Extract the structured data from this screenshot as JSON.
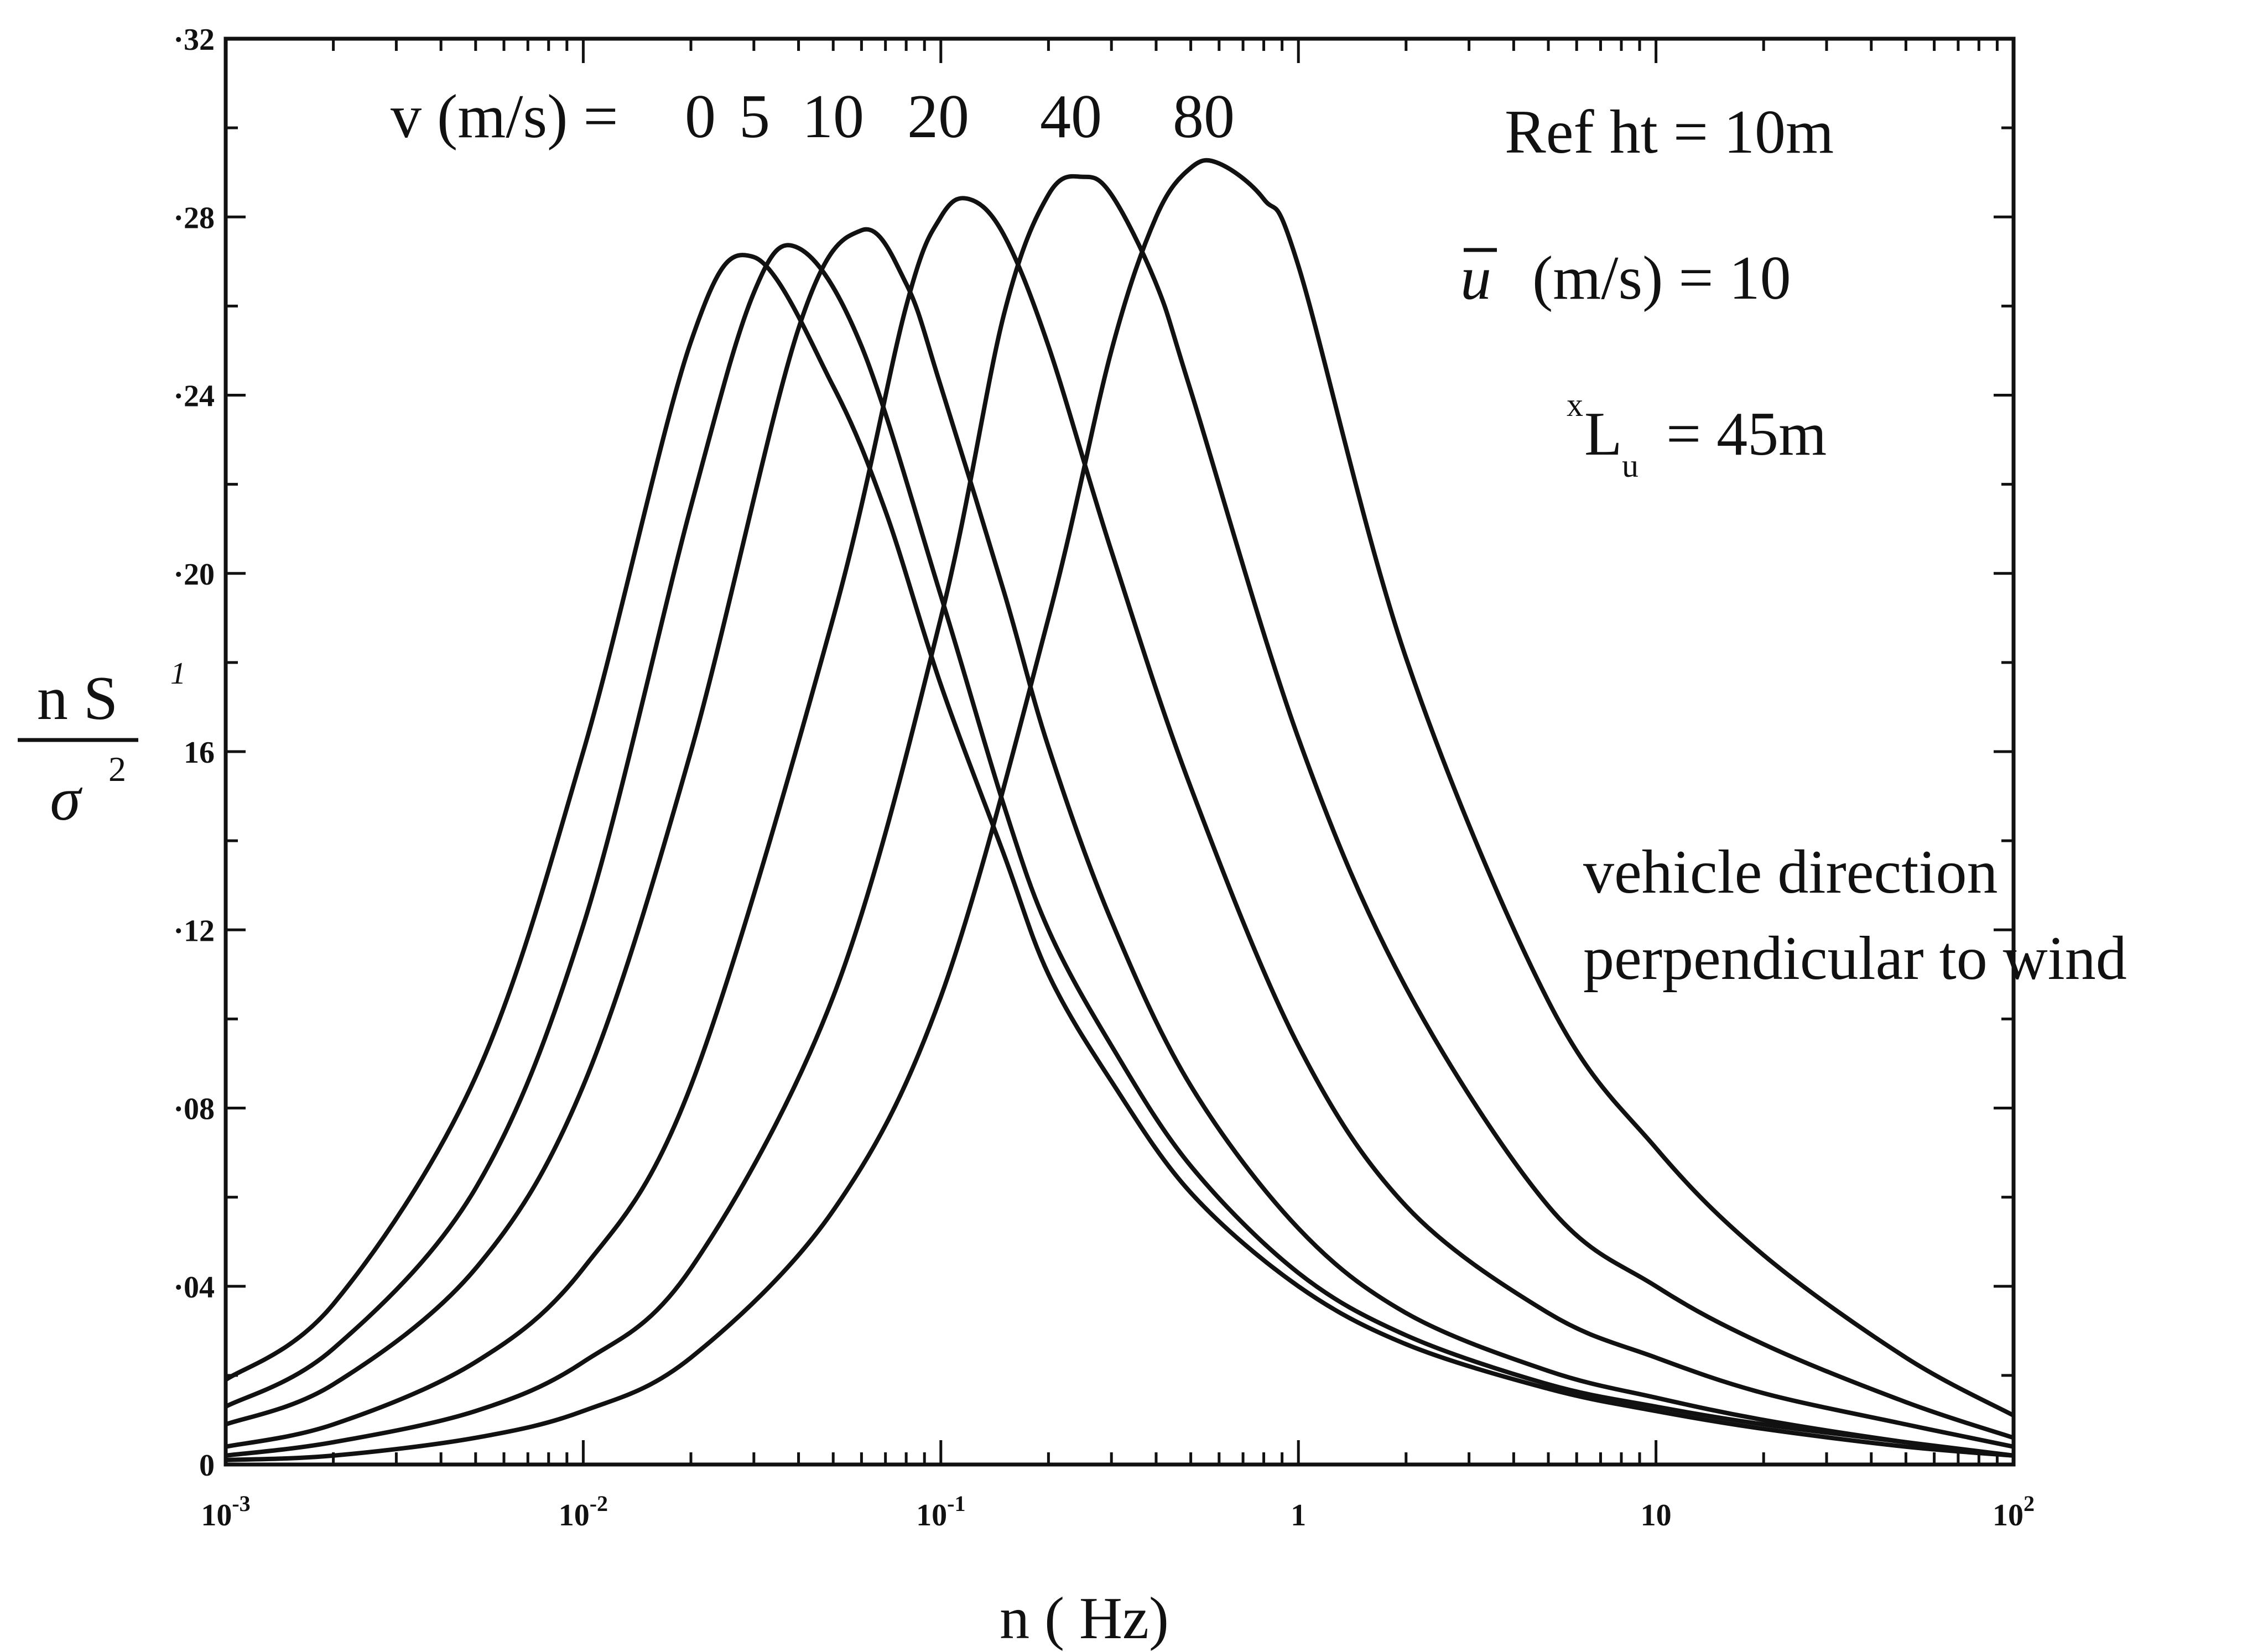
{
  "chart_data": {
    "type": "line",
    "title": "",
    "xlabel": "n ( Hz)",
    "ylabel": {
      "numerator": "n S",
      "denominator_symbol": "σ",
      "denominator_exponent": "2",
      "side_mark": "1"
    },
    "x_scale": "log",
    "xlim": [
      0.001,
      100
    ],
    "ylim": [
      0,
      0.32
    ],
    "x_ticks": [
      {
        "value": 0.001,
        "base": "10",
        "exp": "-3"
      },
      {
        "value": 0.01,
        "base": "10",
        "exp": "-2"
      },
      {
        "value": 0.1,
        "base": "10",
        "exp": "-1"
      },
      {
        "value": 1,
        "base": "1",
        "exp": ""
      },
      {
        "value": 10,
        "base": "10",
        "exp": ""
      },
      {
        "value": 100,
        "base": "10",
        "exp": "2"
      }
    ],
    "y_ticks": [
      {
        "value": 0,
        "label": "0"
      },
      {
        "value": 0.04,
        "label": "·04"
      },
      {
        "value": 0.08,
        "label": "·08"
      },
      {
        "value": 0.12,
        "label": "·12"
      },
      {
        "value": 0.16,
        "label": "16"
      },
      {
        "value": 0.2,
        "label": "·20"
      },
      {
        "value": 0.24,
        "label": "·24"
      },
      {
        "value": 0.28,
        "label": "·28"
      },
      {
        "value": 0.32,
        "label": "·32"
      }
    ],
    "grid": false,
    "legend": {
      "prefix": "v (m/s) = ",
      "labels": [
        "0",
        "5",
        "10",
        "20",
        "40",
        "80"
      ]
    },
    "annotations": {
      "ref_height": "Ref ht = 10m",
      "mean_speed_symbol": "u",
      "mean_speed_text": "(m/s) = 10",
      "length_scale_prefix": "x",
      "length_scale_symbol": "L",
      "length_scale_subscript": "u",
      "length_scale_text": "= 45m",
      "vehicle_line1": "vehicle direction",
      "vehicle_line2": "perpendicular to wind"
    },
    "series": [
      {
        "x": [
          0.001,
          0.002,
          0.005,
          0.01,
          0.02,
          0.03,
          0.05,
          0.07,
          0.1,
          0.15,
          0.2,
          0.3,
          0.5,
          1,
          2,
          5,
          10,
          20,
          50,
          100
        ],
        "y": [
          0.019,
          0.036,
          0.087,
          0.16,
          0.252,
          0.271,
          0.242,
          0.214,
          0.175,
          0.137,
          0.11,
          0.086,
          0.061,
          0.04,
          0.027,
          0.017,
          0.012,
          0.008,
          0.004,
          0.002
        ]
      },
      {
        "x": [
          0.001,
          0.002,
          0.005,
          0.01,
          0.02,
          0.03,
          0.04,
          0.06,
          0.1,
          0.15,
          0.2,
          0.3,
          0.5,
          1,
          2,
          5,
          10,
          20,
          50,
          100
        ],
        "y": [
          0.013,
          0.026,
          0.062,
          0.121,
          0.215,
          0.263,
          0.273,
          0.251,
          0.195,
          0.148,
          0.12,
          0.094,
          0.067,
          0.043,
          0.029,
          0.018,
          0.013,
          0.009,
          0.005,
          0.002
        ]
      },
      {
        "x": [
          0.001,
          0.002,
          0.005,
          0.01,
          0.02,
          0.04,
          0.06,
          0.08,
          0.1,
          0.15,
          0.2,
          0.3,
          0.5,
          1,
          2,
          5,
          10,
          20,
          50,
          100
        ],
        "y": [
          0.009,
          0.018,
          0.044,
          0.085,
          0.16,
          0.255,
          0.277,
          0.265,
          0.242,
          0.196,
          0.161,
          0.122,
          0.085,
          0.053,
          0.034,
          0.021,
          0.015,
          0.01,
          0.005,
          0.002
        ]
      },
      {
        "x": [
          0.001,
          0.002,
          0.005,
          0.01,
          0.02,
          0.05,
          0.08,
          0.1,
          0.12,
          0.15,
          0.2,
          0.3,
          0.5,
          1,
          2,
          5,
          10,
          20,
          50,
          100
        ],
        "y": [
          0.004,
          0.009,
          0.023,
          0.044,
          0.085,
          0.19,
          0.26,
          0.28,
          0.284,
          0.276,
          0.251,
          0.205,
          0.152,
          0.094,
          0.058,
          0.034,
          0.024,
          0.016,
          0.009,
          0.004
        ]
      },
      {
        "x": [
          0.001,
          0.002,
          0.005,
          0.01,
          0.02,
          0.05,
          0.1,
          0.15,
          0.2,
          0.25,
          0.3,
          0.4,
          0.5,
          1,
          2,
          5,
          10,
          20,
          50,
          100
        ],
        "y": [
          0.002,
          0.005,
          0.012,
          0.023,
          0.044,
          0.105,
          0.19,
          0.258,
          0.285,
          0.289,
          0.285,
          0.265,
          0.241,
          0.163,
          0.107,
          0.058,
          0.04,
          0.027,
          0.014,
          0.006
        ]
      },
      {
        "x": [
          0.001,
          0.002,
          0.005,
          0.01,
          0.02,
          0.05,
          0.1,
          0.2,
          0.3,
          0.4,
          0.5,
          0.6,
          0.8,
          1,
          2,
          5,
          10,
          20,
          50,
          100
        ],
        "y": [
          0.001,
          0.002,
          0.006,
          0.012,
          0.024,
          0.057,
          0.105,
          0.19,
          0.25,
          0.28,
          0.291,
          0.292,
          0.284,
          0.269,
          0.181,
          0.104,
          0.071,
          0.047,
          0.024,
          0.011
        ]
      }
    ]
  }
}
